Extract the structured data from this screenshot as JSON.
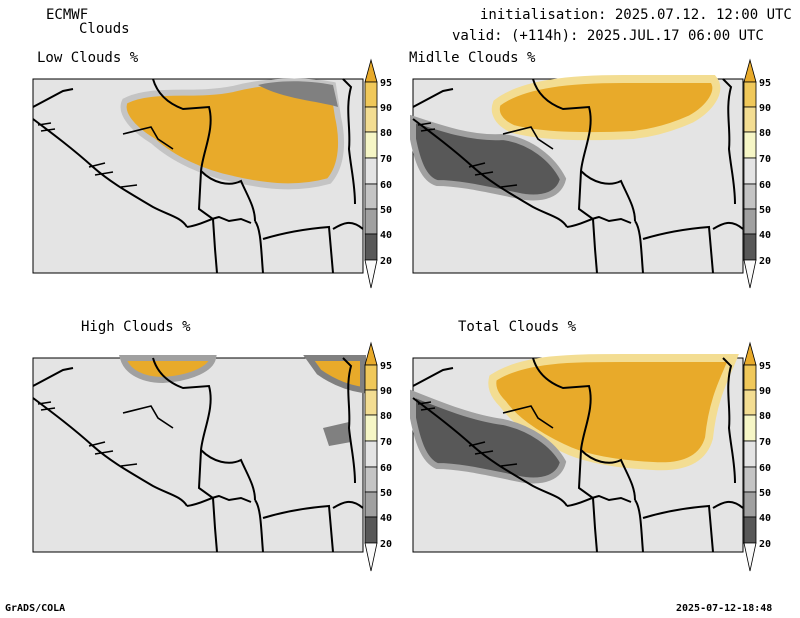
{
  "header": {
    "model": "ECMWF",
    "field": "Clouds",
    "initialisation": "initialisation: 2025.07.12. 12:00 UTC",
    "valid": "valid: (+114h): 2025.JUL.17 06:00 UTC"
  },
  "panels": [
    {
      "title": "Low Clouds %"
    },
    {
      "title": "Midlle Clouds %"
    },
    {
      "title": "High Clouds %"
    },
    {
      "title": "Total Clouds %"
    }
  ],
  "colorbar": {
    "levels": [
      "95",
      "90",
      "80",
      "70",
      "60",
      "50",
      "40",
      "20"
    ],
    "colors": [
      "#e8aa2a",
      "#f0c85a",
      "#f3dd92",
      "#f6f6c6",
      "#e4e4e4",
      "#c4c4c4",
      "#a0a0a0",
      "#808080",
      "#585858",
      "#fafafa"
    ]
  },
  "footer": {
    "left": "GrADS/COLA",
    "right": "2025-07-12-18:48"
  }
}
